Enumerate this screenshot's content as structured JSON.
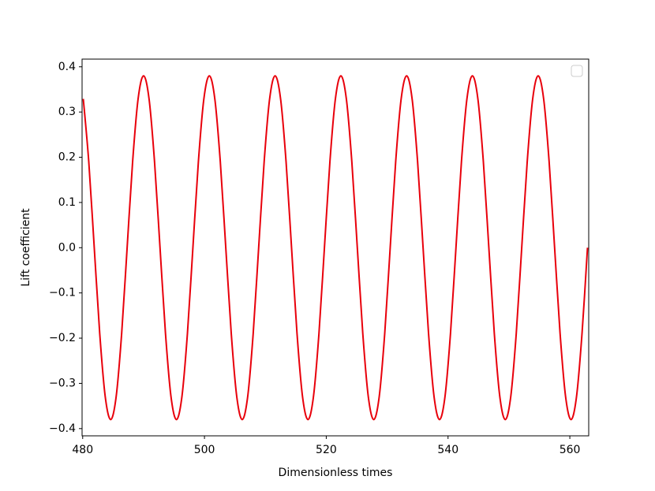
{
  "chart_data": {
    "type": "line",
    "x_label": "Dimensionless times",
    "y_label": "Lift coefficient",
    "xlim": [
      479.9,
      563.1
    ],
    "ylim": [
      -0.416,
      0.417
    ],
    "xticks": [
      480,
      500,
      520,
      540,
      560
    ],
    "yticks": [
      {
        "value": -0.4,
        "label": "−0.4"
      },
      {
        "value": -0.3,
        "label": "−0.3"
      },
      {
        "value": -0.2,
        "label": "−0.2"
      },
      {
        "value": -0.1,
        "label": "−0.1"
      },
      {
        "value": 0,
        "label": "0.0"
      },
      0.1,
      0.2,
      0.3,
      0.4
    ],
    "grid": false,
    "legend": "upper right",
    "x": [
      480.1,
      481,
      481.9,
      482.8,
      483.7,
      484.6,
      485.5,
      486.4,
      487.3,
      488.2,
      489.1,
      490,
      490.9,
      491.8,
      492.7,
      493.6,
      494.5,
      495.4,
      496.3,
      497.2,
      498.1,
      499,
      499.9,
      500.8,
      501.7,
      502.6,
      503.5,
      504.4,
      505.3,
      506.2,
      507.1,
      508,
      508.9,
      509.8,
      510.7,
      511.6,
      512.5,
      513.4,
      514.3,
      515.2,
      516.1,
      517,
      517.9,
      518.8,
      519.7,
      520.6,
      521.5,
      522.4,
      523.3,
      524.2,
      525.1,
      526,
      526.9,
      527.8,
      528.7,
      529.6,
      530.5,
      531.4,
      532.3,
      533.2,
      534.1,
      535,
      535.9,
      536.8,
      537.7,
      538.6,
      539.5,
      540.4,
      541.3,
      542.2,
      543.1,
      544,
      544.9,
      545.8,
      546.7,
      547.6,
      548.5,
      549.4,
      550.3,
      551.2,
      552.1,
      553,
      553.9,
      554.8,
      555.7,
      556.6,
      557.5,
      558.4,
      559.3,
      560.2,
      561.1,
      562,
      562.9
    ],
    "series": [
      {
        "color": "#e8000b",
        "values": [
          0.329,
          0.19,
          0,
          -0.19,
          -0.329,
          -0.38,
          -0.329,
          -0.19,
          0,
          0.19,
          0.329,
          0.38,
          0.329,
          0.19,
          0,
          -0.19,
          -0.329,
          -0.38,
          -0.329,
          -0.19,
          0,
          0.19,
          0.329,
          0.38,
          0.329,
          0.19,
          0,
          -0.19,
          -0.329,
          -0.38,
          -0.329,
          -0.19,
          0,
          0.19,
          0.329,
          0.38,
          0.329,
          0.19,
          0,
          -0.19,
          -0.329,
          -0.38,
          -0.329,
          -0.19,
          0,
          0.19,
          0.329,
          0.38,
          0.329,
          0.19,
          0,
          -0.19,
          -0.329,
          -0.38,
          -0.329,
          -0.19,
          0,
          0.19,
          0.329,
          0.38,
          0.329,
          0.19,
          0,
          -0.19,
          -0.329,
          -0.38,
          -0.329,
          -0.19,
          0,
          0.19,
          0.329,
          0.38,
          0.329,
          0.19,
          0,
          -0.19,
          -0.329,
          -0.38,
          -0.329,
          -0.19,
          0,
          0.19,
          0.329,
          0.38,
          0.329,
          0.19,
          0,
          -0.19,
          -0.329,
          -0.38,
          -0.329,
          -0.19,
          0
        ]
      }
    ]
  }
}
